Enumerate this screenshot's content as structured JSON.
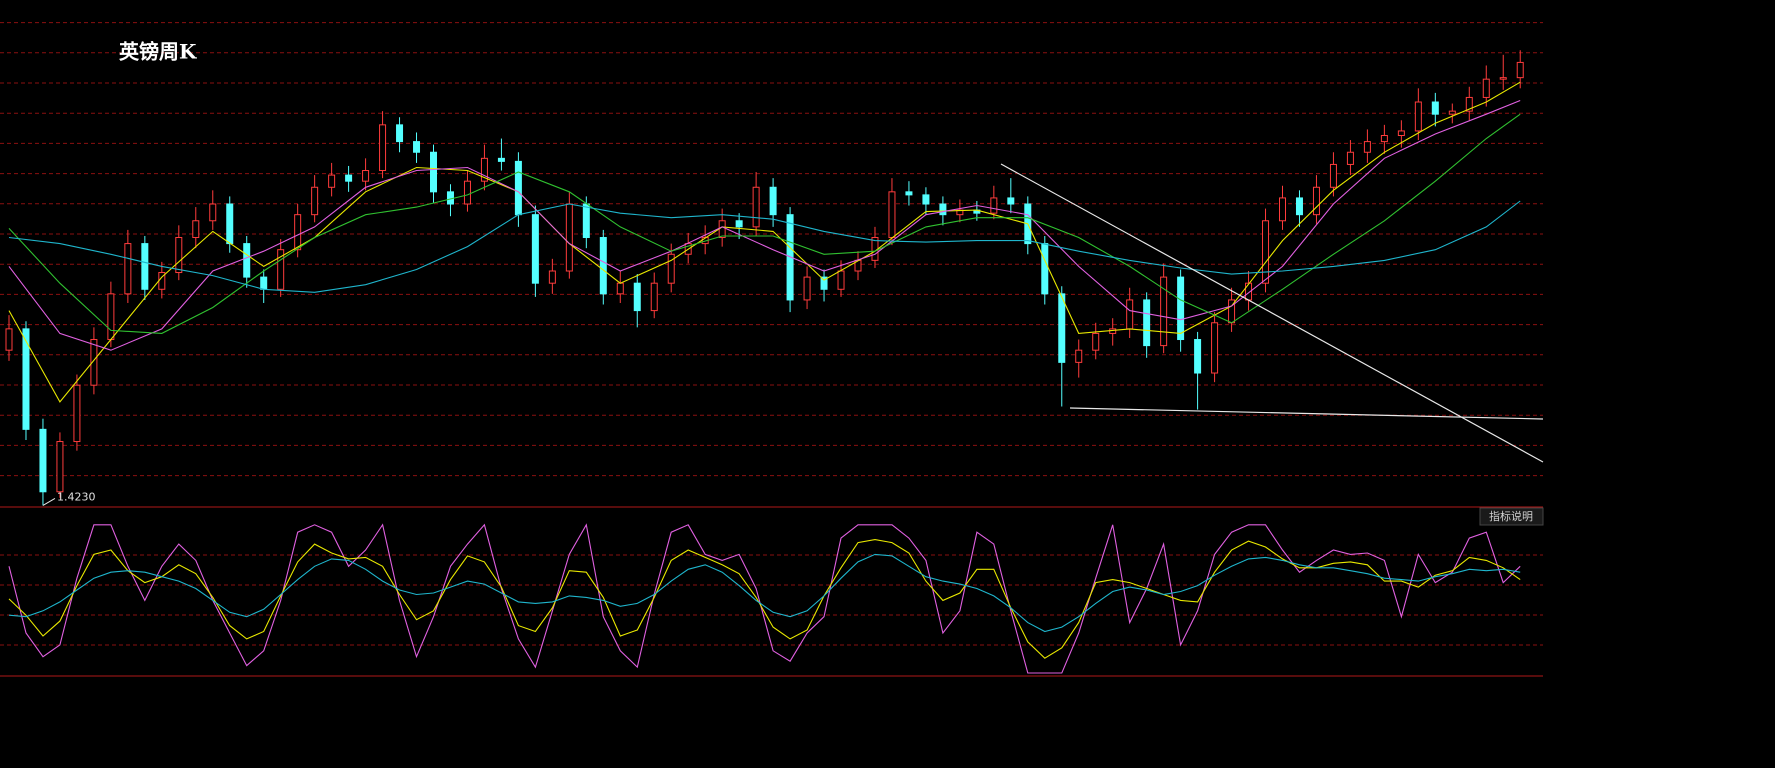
{
  "chart_data": [
    {
      "type": "candlestick",
      "title": "英镑周K",
      "up_color": "#ff3c3c",
      "down_color": "#54ffff",
      "ylim": [
        1.422,
        1.755
      ],
      "low_label": {
        "value": 1.423,
        "label": "1.4230"
      },
      "ohlc": [
        [
          1.525,
          1.548,
          1.518,
          1.539
        ],
        [
          1.539,
          1.544,
          1.466,
          1.473
        ],
        [
          1.473,
          1.48,
          1.423,
          1.432
        ],
        [
          1.432,
          1.471,
          1.428,
          1.465
        ],
        [
          1.465,
          1.509,
          1.459,
          1.502
        ],
        [
          1.502,
          1.54,
          1.496,
          1.532
        ],
        [
          1.532,
          1.57,
          1.527,
          1.562
        ],
        [
          1.562,
          1.604,
          1.556,
          1.595
        ],
        [
          1.595,
          1.6,
          1.558,
          1.565
        ],
        [
          1.565,
          1.583,
          1.559,
          1.576
        ],
        [
          1.576,
          1.607,
          1.571,
          1.599
        ],
        [
          1.599,
          1.619,
          1.592,
          1.61
        ],
        [
          1.61,
          1.63,
          1.604,
          1.621
        ],
        [
          1.621,
          1.626,
          1.589,
          1.595
        ],
        [
          1.595,
          1.6,
          1.566,
          1.573
        ],
        [
          1.573,
          1.578,
          1.556,
          1.565
        ],
        [
          1.565,
          1.598,
          1.56,
          1.591
        ],
        [
          1.591,
          1.621,
          1.586,
          1.614
        ],
        [
          1.614,
          1.64,
          1.609,
          1.632
        ],
        [
          1.632,
          1.648,
          1.626,
          1.64
        ],
        [
          1.64,
          1.646,
          1.629,
          1.636
        ],
        [
          1.636,
          1.651,
          1.63,
          1.643
        ],
        [
          1.643,
          1.682,
          1.638,
          1.673
        ],
        [
          1.673,
          1.678,
          1.655,
          1.662
        ],
        [
          1.662,
          1.668,
          1.648,
          1.655
        ],
        [
          1.655,
          1.66,
          1.622,
          1.629
        ],
        [
          1.629,
          1.634,
          1.613,
          1.621
        ],
        [
          1.621,
          1.643,
          1.616,
          1.636
        ],
        [
          1.636,
          1.66,
          1.63,
          1.651
        ],
        [
          1.651,
          1.664,
          1.643,
          1.649
        ],
        [
          1.649,
          1.655,
          1.606,
          1.614
        ],
        [
          1.614,
          1.62,
          1.56,
          1.569
        ],
        [
          1.569,
          1.585,
          1.562,
          1.577
        ],
        [
          1.577,
          1.629,
          1.572,
          1.621
        ],
        [
          1.621,
          1.626,
          1.592,
          1.599
        ],
        [
          1.599,
          1.604,
          1.555,
          1.562
        ],
        [
          1.562,
          1.577,
          1.556,
          1.569
        ],
        [
          1.569,
          1.575,
          1.54,
          1.551
        ],
        [
          1.551,
          1.576,
          1.546,
          1.569
        ],
        [
          1.569,
          1.595,
          1.563,
          1.588
        ],
        [
          1.588,
          1.602,
          1.582,
          1.595
        ],
        [
          1.595,
          1.607,
          1.588,
          1.599
        ],
        [
          1.599,
          1.618,
          1.593,
          1.61
        ],
        [
          1.61,
          1.615,
          1.598,
          1.606
        ],
        [
          1.606,
          1.642,
          1.6,
          1.632
        ],
        [
          1.632,
          1.638,
          1.606,
          1.614
        ],
        [
          1.614,
          1.619,
          1.55,
          1.558
        ],
        [
          1.558,
          1.58,
          1.552,
          1.573
        ],
        [
          1.573,
          1.578,
          1.557,
          1.565
        ],
        [
          1.565,
          1.584,
          1.56,
          1.577
        ],
        [
          1.577,
          1.59,
          1.571,
          1.584
        ],
        [
          1.584,
          1.606,
          1.579,
          1.599
        ],
        [
          1.599,
          1.638,
          1.594,
          1.629
        ],
        [
          1.629,
          1.636,
          1.62,
          1.627
        ],
        [
          1.627,
          1.632,
          1.614,
          1.621
        ],
        [
          1.621,
          1.626,
          1.607,
          1.614
        ],
        [
          1.614,
          1.624,
          1.609,
          1.617
        ],
        [
          1.617,
          1.623,
          1.61,
          1.615
        ],
        [
          1.615,
          1.633,
          1.611,
          1.625
        ],
        [
          1.625,
          1.638,
          1.615,
          1.621
        ],
        [
          1.621,
          1.626,
          1.588,
          1.595
        ],
        [
          1.595,
          1.6,
          1.555,
          1.562
        ],
        [
          1.562,
          1.567,
          1.488,
          1.517
        ],
        [
          1.517,
          1.532,
          1.507,
          1.525
        ],
        [
          1.525,
          1.543,
          1.519,
          1.536
        ],
        [
          1.536,
          1.546,
          1.528,
          1.539
        ],
        [
          1.539,
          1.566,
          1.533,
          1.558
        ],
        [
          1.558,
          1.563,
          1.52,
          1.528
        ],
        [
          1.528,
          1.582,
          1.523,
          1.573
        ],
        [
          1.573,
          1.578,
          1.524,
          1.532
        ],
        [
          1.532,
          1.537,
          1.486,
          1.51
        ],
        [
          1.51,
          1.55,
          1.504,
          1.543
        ],
        [
          1.543,
          1.566,
          1.537,
          1.558
        ],
        [
          1.558,
          1.577,
          1.551,
          1.569
        ],
        [
          1.569,
          1.618,
          1.563,
          1.61
        ],
        [
          1.61,
          1.633,
          1.604,
          1.625
        ],
        [
          1.625,
          1.63,
          1.606,
          1.614
        ],
        [
          1.614,
          1.64,
          1.608,
          1.632
        ],
        [
          1.632,
          1.655,
          1.626,
          1.647
        ],
        [
          1.647,
          1.663,
          1.64,
          1.655
        ],
        [
          1.655,
          1.67,
          1.648,
          1.662
        ],
        [
          1.662,
          1.673,
          1.654,
          1.666
        ],
        [
          1.666,
          1.676,
          1.658,
          1.669
        ],
        [
          1.669,
          1.697,
          1.663,
          1.688
        ],
        [
          1.688,
          1.694,
          1.672,
          1.68
        ],
        [
          1.68,
          1.687,
          1.674,
          1.682
        ],
        [
          1.682,
          1.698,
          1.676,
          1.691
        ],
        [
          1.691,
          1.712,
          1.685,
          1.703
        ],
        [
          1.703,
          1.719,
          1.696,
          1.704
        ],
        [
          1.704,
          1.722,
          1.697,
          1.714
        ]
      ],
      "x": [
        0,
        3,
        6,
        9,
        12,
        15,
        18,
        21,
        24,
        27,
        30,
        33,
        36,
        39,
        42,
        45,
        48,
        51,
        54,
        57,
        60,
        63,
        66,
        69,
        72,
        75,
        78,
        81,
        84,
        87,
        89
      ],
      "series": [
        {
          "color": "#e8e800",
          "values": [
            1.551,
            1.491,
            1.532,
            1.573,
            1.603,
            1.58,
            1.599,
            1.629,
            1.645,
            1.643,
            1.629,
            1.595,
            1.569,
            1.584,
            1.606,
            1.603,
            1.571,
            1.59,
            1.616,
            1.617,
            1.608,
            1.536,
            1.539,
            1.536,
            1.554,
            1.597,
            1.63,
            1.655,
            1.674,
            1.688,
            1.701
          ]
        },
        {
          "color": "#e060e0",
          "values": [
            1.58,
            1.536,
            1.525,
            1.539,
            1.577,
            1.59,
            1.606,
            1.632,
            1.643,
            1.645,
            1.629,
            1.595,
            1.577,
            1.59,
            1.606,
            1.591,
            1.577,
            1.588,
            1.614,
            1.62,
            1.614,
            1.58,
            1.551,
            1.545,
            1.554,
            1.58,
            1.621,
            1.651,
            1.667,
            1.68,
            1.689
          ]
        },
        {
          "color": "#30c030",
          "values": [
            1.605,
            1.569,
            1.538,
            1.536,
            1.553,
            1.577,
            1.599,
            1.614,
            1.619,
            1.627,
            1.642,
            1.629,
            1.606,
            1.59,
            1.6,
            1.6,
            1.588,
            1.59,
            1.606,
            1.612,
            1.612,
            1.599,
            1.58,
            1.558,
            1.543,
            1.565,
            1.588,
            1.61,
            1.636,
            1.664,
            1.68
          ]
        },
        {
          "color": "#1fb5cc",
          "values": [
            1.599,
            1.595,
            1.588,
            1.58,
            1.574,
            1.565,
            1.563,
            1.568,
            1.578,
            1.593,
            1.614,
            1.621,
            1.615,
            1.612,
            1.614,
            1.611,
            1.603,
            1.597,
            1.596,
            1.597,
            1.597,
            1.59,
            1.584,
            1.579,
            1.575,
            1.577,
            1.58,
            1.584,
            1.591,
            1.606,
            1.623
          ]
        }
      ]
    },
    {
      "type": "line",
      "ylim": [
        -2,
        112
      ],
      "series": [
        {
          "color": "#e060e0",
          "values": [
            72,
            27,
            11,
            19,
            64,
            100,
            100,
            72,
            49,
            72,
            87,
            76,
            49,
            27,
            5,
            15,
            49,
            95,
            100,
            95,
            72,
            83,
            100,
            49,
            11,
            38,
            72,
            87,
            100,
            57,
            23,
            4,
            42,
            80,
            100,
            38,
            15,
            4,
            53,
            95,
            100,
            80,
            76,
            80,
            57,
            15,
            8,
            27,
            38,
            91,
            100,
            100,
            100,
            91,
            76,
            27,
            42,
            95,
            87,
            42,
            0,
            0,
            0,
            27,
            64,
            100,
            34,
            57,
            87,
            19,
            42,
            80,
            95,
            100,
            100,
            83,
            68,
            76,
            83,
            80,
            81,
            76,
            38,
            80,
            61,
            68,
            91,
            95,
            61,
            72
          ]
        },
        {
          "color": "#e8e800",
          "values": [
            50,
            39,
            25,
            35,
            59,
            80,
            83,
            69,
            61,
            65,
            73,
            67,
            51,
            32,
            23,
            28,
            52,
            75,
            87,
            81,
            77,
            78,
            72,
            53,
            36,
            42,
            63,
            79,
            75,
            58,
            32,
            28,
            44,
            69,
            68,
            51,
            25,
            29,
            51,
            76,
            83,
            78,
            73,
            67,
            51,
            31,
            23,
            29,
            52,
            71,
            88,
            90,
            88,
            81,
            62,
            49,
            54,
            70,
            70,
            44,
            21,
            10,
            17,
            34,
            61,
            63,
            61,
            57,
            53,
            49,
            48,
            68,
            83,
            89,
            85,
            77,
            71,
            71,
            74,
            75,
            73,
            62,
            62,
            58,
            66,
            69,
            78,
            76,
            71,
            63
          ]
        },
        {
          "color": "#1fb5cc",
          "values": [
            39,
            38,
            42,
            48,
            56,
            64,
            68,
            69,
            68,
            65,
            62,
            57,
            49,
            41,
            38,
            43,
            53,
            63,
            72,
            77,
            76,
            70,
            62,
            56,
            53,
            54,
            58,
            62,
            60,
            54,
            48,
            47,
            48,
            52,
            51,
            49,
            45,
            47,
            53,
            62,
            70,
            73,
            68,
            59,
            49,
            41,
            38,
            42,
            52,
            64,
            75,
            80,
            79,
            72,
            65,
            62,
            60,
            57,
            52,
            44,
            34,
            28,
            31,
            38,
            47,
            55,
            58,
            56,
            53,
            55,
            59,
            66,
            72,
            77,
            78,
            76,
            73,
            71,
            71,
            69,
            67,
            64,
            63,
            62,
            65,
            67,
            70,
            69,
            70,
            68
          ]
        }
      ]
    }
  ],
  "indicator_button": "指标说明"
}
